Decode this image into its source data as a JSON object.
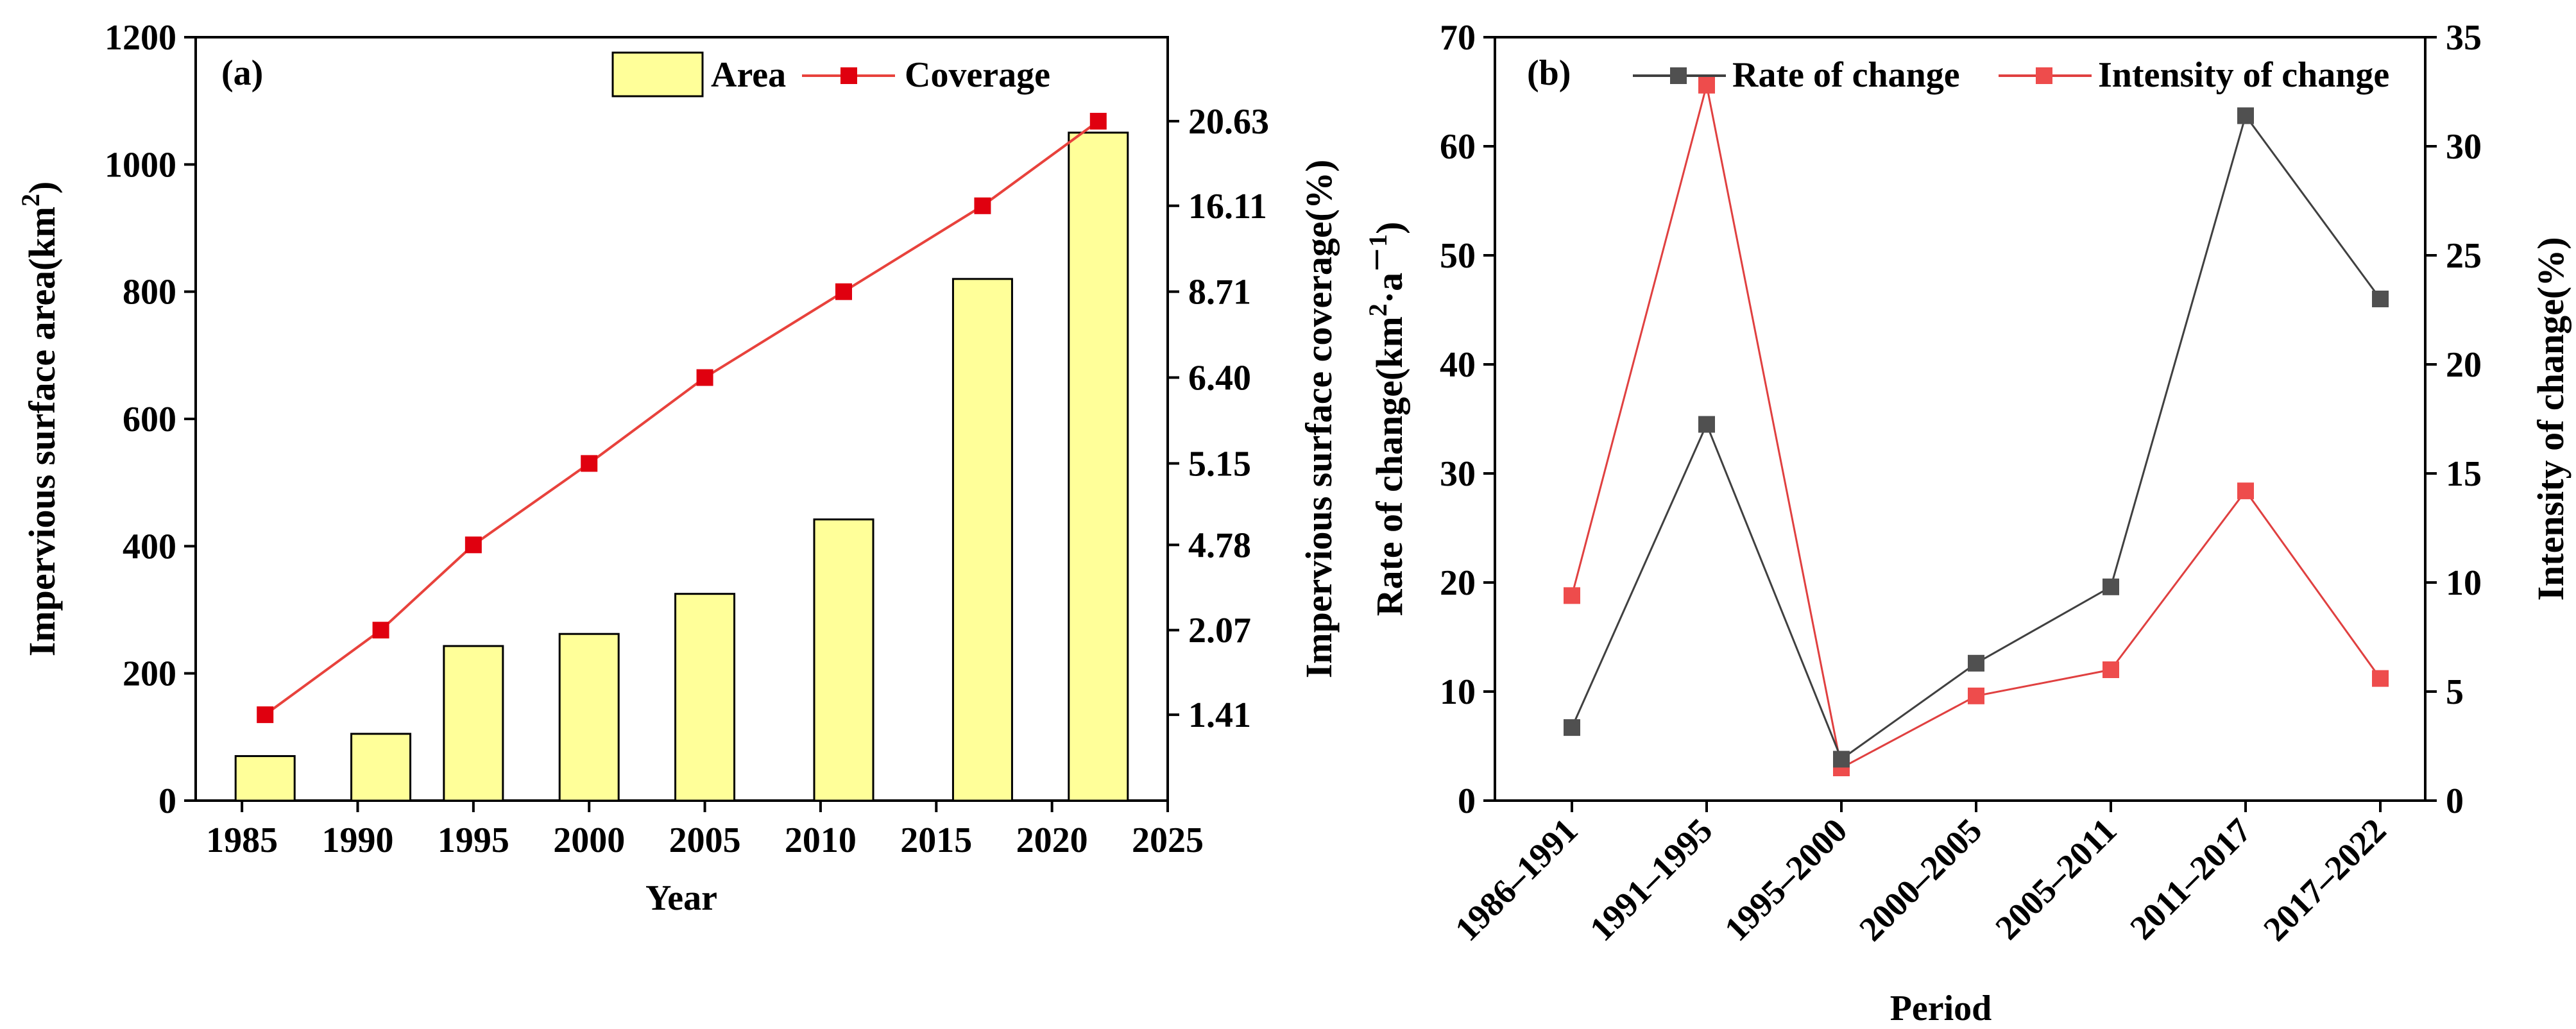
{
  "chart_data": [
    {
      "type": "bar+line",
      "panel_label": "(a)",
      "xlabel": "Year",
      "ylabel_left": "Impervious surface area(km",
      "ylabel_left_sup": "2",
      "ylabel_left_close": ")",
      "ylabel_right": "Impervious surface coverage(%)",
      "x_ticks": [
        "1985",
        "1990",
        "1995",
        "2000",
        "2005",
        "2010",
        "2015",
        "2020",
        "2025"
      ],
      "y_ticks_left": [
        "0",
        "200",
        "400",
        "600",
        "800",
        "1000",
        "1200"
      ],
      "y_ticks_right": [
        "1.41",
        "2.07",
        "4.78",
        "5.15",
        "6.40",
        "8.71",
        "16.11",
        "20.63"
      ],
      "xlim": [
        1983,
        2025
      ],
      "ylim": [
        0,
        1200
      ],
      "legend": [
        "Area",
        "Coverage"
      ],
      "bar_series": {
        "name": "Area",
        "x": [
          1986,
          1991,
          1995,
          2000,
          2005,
          2011,
          2017,
          2022
        ],
        "values": [
          70,
          105,
          243,
          262,
          325,
          442,
          820,
          1050
        ]
      },
      "line_series": {
        "name": "Coverage",
        "x": [
          1986,
          1991,
          1995,
          2000,
          2005,
          2011,
          2017,
          2022
        ],
        "values": [
          1.41,
          2.07,
          4.78,
          5.15,
          6.4,
          8.71,
          16.11,
          20.63
        ],
        "plot_y_on_left_axis": [
          135,
          268,
          402,
          530,
          665,
          800,
          935,
          1068
        ]
      }
    },
    {
      "type": "line",
      "panel_label": "(b)",
      "xlabel": "Period",
      "ylabel_left": "Rate of change(km",
      "ylabel_left_sup": "2",
      "ylabel_left_mid": "·a",
      "ylabel_left_sup2": "－1",
      "ylabel_left_close": ")",
      "ylabel_right": "Intensity of change(%)",
      "categories": [
        "1986–1991",
        "1991–1995",
        "1995–2000",
        "2000–2005",
        "2005–2011",
        "2011–2017",
        "2017–2022"
      ],
      "y_ticks_left": [
        "0",
        "10",
        "20",
        "30",
        "40",
        "50",
        "60",
        "70"
      ],
      "y_ticks_right": [
        "0",
        "5",
        "10",
        "15",
        "20",
        "25",
        "30",
        "35"
      ],
      "ylim_left": [
        0,
        70
      ],
      "ylim_right": [
        0,
        35
      ],
      "legend": [
        "Rate of change",
        "Intensity of change"
      ],
      "series": [
        {
          "name": "Rate of change",
          "axis": "left",
          "values": [
            6.7,
            34.5,
            3.8,
            12.6,
            19.6,
            62.8,
            46.0
          ]
        },
        {
          "name": "Intensity of change",
          "axis": "right",
          "values": [
            9.4,
            32.8,
            1.5,
            4.8,
            6.0,
            14.2,
            5.6
          ]
        }
      ]
    }
  ],
  "colors": {
    "bar_fill": "#ffff99",
    "coverage_line": "#e8423c",
    "coverage_marker": "#e0000f",
    "rate_line": "#404040",
    "rate_marker": "#505050",
    "intensity_line": "#e04040",
    "intensity_marker": "#ee4c4c"
  }
}
